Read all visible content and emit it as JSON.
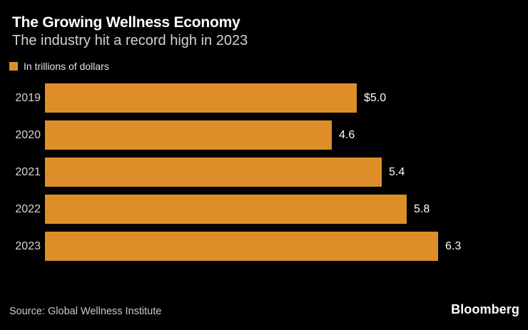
{
  "header": {
    "title": "The Growing Wellness Economy",
    "subtitle": "The industry hit a record high in 2023"
  },
  "legend": {
    "label": "In trillions of dollars",
    "swatch_color": "#DE8E28"
  },
  "chart_data": {
    "type": "bar",
    "orientation": "horizontal",
    "title": "The Growing Wellness Economy",
    "subtitle": "The industry hit a record high in 2023",
    "unit_label": "In trillions of dollars",
    "categories": [
      "2019",
      "2020",
      "2021",
      "2022",
      "2023"
    ],
    "values": [
      5.0,
      4.6,
      5.4,
      5.8,
      6.3
    ],
    "value_labels": [
      "$5.0",
      "4.6",
      "5.4",
      "5.8",
      "6.3"
    ],
    "xlim": [
      0,
      6.3
    ],
    "grid": false,
    "legend_position": "top-left",
    "bar_color": "#DE8E28"
  },
  "footer": {
    "source": "Source: Global Wellness Institute",
    "brand": "Bloomberg"
  },
  "colors": {
    "background": "#000000",
    "accent_orange": "#DE8E28",
    "title_text": "#FFFFFF",
    "muted_text": "#D2D2D2"
  }
}
